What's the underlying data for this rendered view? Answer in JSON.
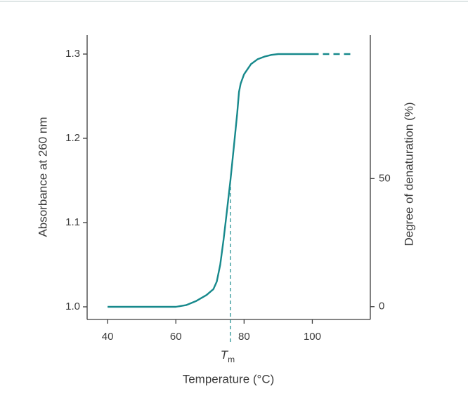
{
  "chart_data": {
    "type": "line",
    "xlabel": "Temperature (°C)",
    "ylabel": "Absorbance at 260 nm",
    "y2label": "Degree of denaturation (%)",
    "x": [
      40,
      50,
      60,
      63,
      66,
      69,
      71,
      72,
      73,
      74,
      75,
      76,
      77,
      78,
      78.5,
      79,
      80,
      82,
      84,
      86,
      88,
      90,
      100,
      112
    ],
    "series": [
      {
        "color": "#17898c",
        "values": [
          1.0,
          1.0,
          1.0,
          1.002,
          1.007,
          1.014,
          1.021,
          1.03,
          1.05,
          1.08,
          1.115,
          1.15,
          1.19,
          1.23,
          1.255,
          1.265,
          1.276,
          1.288,
          1.294,
          1.297,
          1.299,
          1.3,
          1.3,
          null
        ]
      },
      {
        "color": "#17898c",
        "dashed": true,
        "values": [
          null,
          null,
          null,
          null,
          null,
          null,
          null,
          null,
          null,
          null,
          null,
          null,
          null,
          null,
          null,
          null,
          null,
          null,
          null,
          null,
          null,
          null,
          1.3,
          1.3
        ]
      }
    ],
    "annotation": {
      "text": "T",
      "subscript": "m",
      "x": 76,
      "y": 1.15
    },
    "xlim": [
      34,
      117
    ],
    "xticks": [
      40,
      60,
      80,
      100
    ],
    "ylim": [
      0.985,
      1.3225
    ],
    "yticks": [
      {
        "value": 1,
        "label": "1.0"
      },
      1.1,
      1.2,
      1.3
    ],
    "y2lim": [
      -5,
      106
    ],
    "y2ticks": [
      0,
      50
    ]
  }
}
